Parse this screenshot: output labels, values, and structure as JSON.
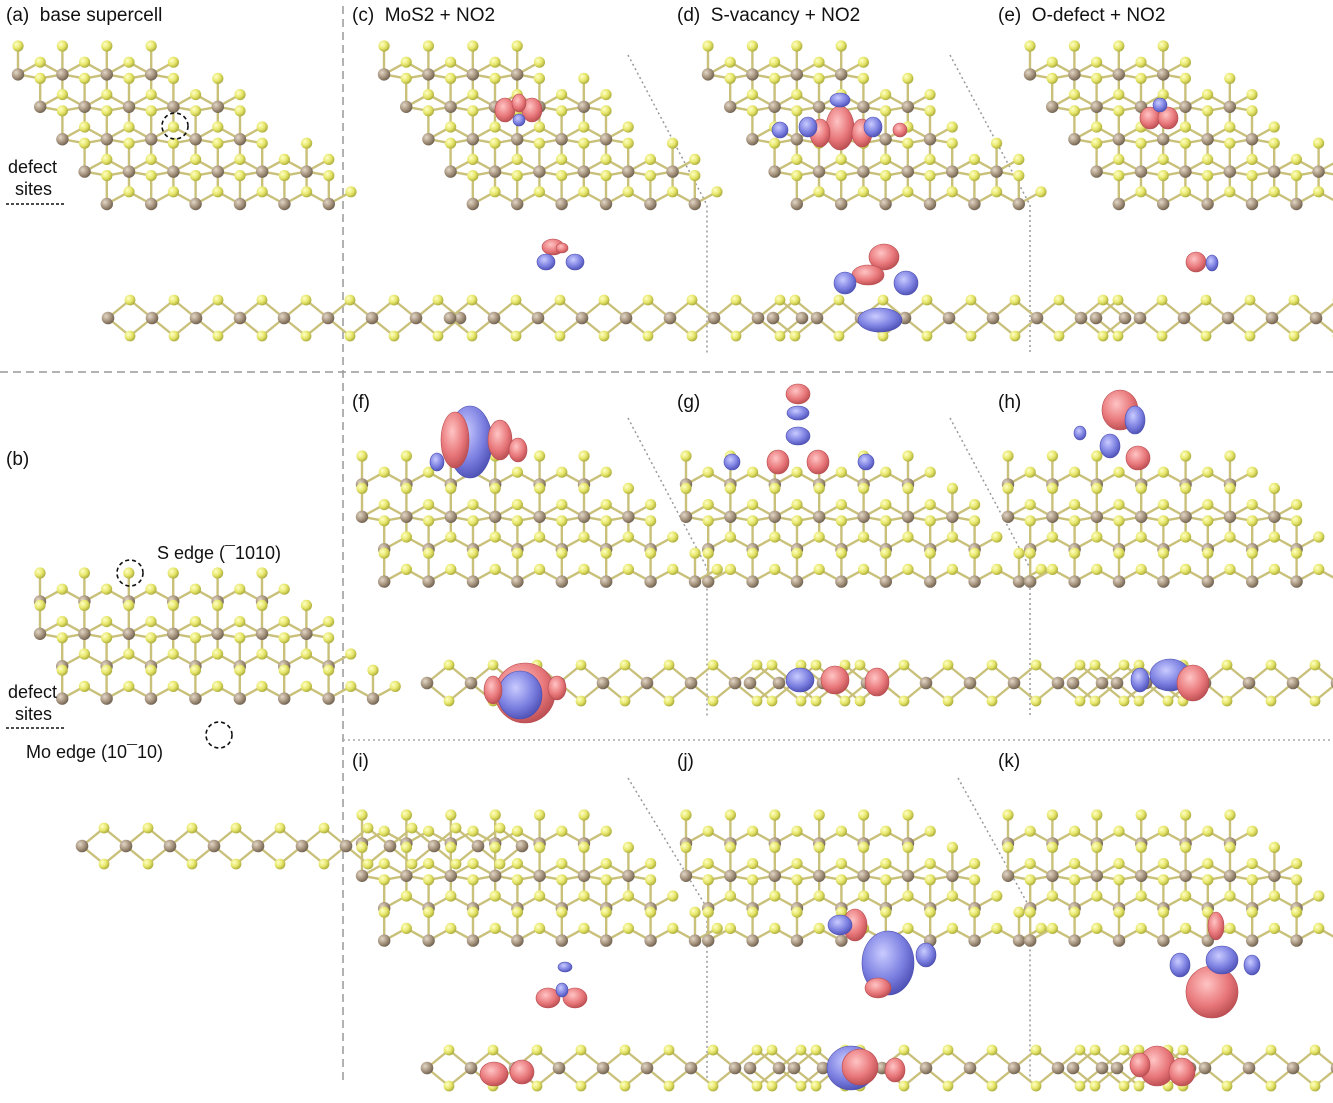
{
  "panels": {
    "a": {
      "tag": "(a)",
      "title": "base supercell"
    },
    "b": {
      "tag": "(b)"
    },
    "c": {
      "tag": "(c)",
      "title": "MoS2 + NO2"
    },
    "d": {
      "tag": "(d)",
      "title": "S-vacancy + NO2"
    },
    "e": {
      "tag": "(e)",
      "title": "O-defect + NO2"
    },
    "f": {
      "tag": "(f)"
    },
    "g": {
      "tag": "(g)"
    },
    "h": {
      "tag": "(h)"
    },
    "i": {
      "tag": "(i)"
    },
    "j": {
      "tag": "(j)"
    },
    "k": {
      "tag": "(k)"
    }
  },
  "annotations": {
    "defect_sites_a_1": "defect",
    "defect_sites_a_2": "sites",
    "defect_sites_b_1": "defect",
    "defect_sites_b_2": "sites",
    "s_edge": "S edge (¯1010)",
    "mo_edge": "Mo edge (10¯10)"
  },
  "colors": {
    "sulfur": "#e6e66a",
    "molybdenum": "#a89680",
    "bond": "#c9c07a",
    "charge_accumulation": "#e8777a",
    "charge_depletion": "#7b7fe0",
    "divider": "#999999"
  }
}
